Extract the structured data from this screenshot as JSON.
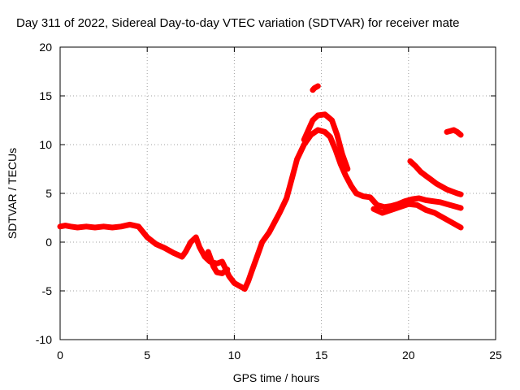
{
  "chart_data": {
    "type": "scatter",
    "title": "Day 311 of 2022, Sidereal Day-to-day VTEC variation (SDTVAR) for receiver mate",
    "xlabel": "GPS time / hours",
    "ylabel": "SDTVAR / TECUs",
    "xlim": [
      0,
      25
    ],
    "ylim": [
      -10,
      20
    ],
    "grid": true,
    "xticks": [
      0,
      5,
      10,
      15,
      20,
      25
    ],
    "yticks": [
      -10,
      -5,
      0,
      5,
      10,
      15,
      20
    ],
    "xtick_labels": [
      "0",
      "5",
      "10",
      "15",
      "20",
      "25"
    ],
    "ytick_labels": [
      "-10",
      "-5",
      "0",
      "5",
      "10",
      "15",
      "20"
    ],
    "series_color": "#ff0000",
    "series": [
      {
        "name": "main",
        "points": [
          [
            0.0,
            1.6
          ],
          [
            0.3,
            1.7
          ],
          [
            0.6,
            1.6
          ],
          [
            1.0,
            1.5
          ],
          [
            1.5,
            1.6
          ],
          [
            2.0,
            1.5
          ],
          [
            2.5,
            1.6
          ],
          [
            3.0,
            1.5
          ],
          [
            3.5,
            1.6
          ],
          [
            4.0,
            1.8
          ],
          [
            4.5,
            1.6
          ],
          [
            5.0,
            0.5
          ],
          [
            5.5,
            -0.2
          ],
          [
            6.0,
            -0.6
          ],
          [
            6.5,
            -1.1
          ],
          [
            7.0,
            -1.5
          ],
          [
            7.2,
            -1.0
          ],
          [
            7.5,
            0.0
          ],
          [
            7.8,
            0.5
          ],
          [
            8.0,
            -0.5
          ],
          [
            8.3,
            -1.5
          ],
          [
            8.6,
            -2.0
          ],
          [
            9.0,
            -2.2
          ],
          [
            9.3,
            -2.0
          ],
          [
            9.7,
            -3.5
          ],
          [
            10.0,
            -4.2
          ],
          [
            10.3,
            -4.5
          ],
          [
            10.6,
            -4.8
          ],
          [
            10.8,
            -4.0
          ],
          [
            11.0,
            -3.0
          ],
          [
            11.3,
            -1.5
          ],
          [
            11.6,
            0.0
          ],
          [
            12.0,
            1.0
          ],
          [
            12.3,
            2.0
          ],
          [
            12.6,
            3.0
          ],
          [
            13.0,
            4.5
          ],
          [
            13.3,
            6.5
          ],
          [
            13.6,
            8.5
          ],
          [
            14.0,
            10.0
          ],
          [
            14.4,
            11.0
          ],
          [
            14.8,
            11.5
          ],
          [
            15.2,
            11.3
          ],
          [
            15.5,
            10.8
          ],
          [
            15.8,
            9.5
          ],
          [
            16.1,
            8.0
          ],
          [
            16.4,
            6.8
          ],
          [
            16.7,
            5.8
          ],
          [
            17.0,
            5.0
          ],
          [
            17.4,
            4.7
          ],
          [
            17.8,
            4.6
          ],
          [
            18.2,
            3.8
          ],
          [
            18.6,
            3.6
          ],
          [
            19.0,
            3.7
          ],
          [
            19.4,
            3.9
          ],
          [
            19.8,
            4.2
          ],
          [
            20.2,
            4.4
          ],
          [
            20.6,
            4.5
          ],
          [
            21.0,
            4.3
          ],
          [
            21.4,
            4.2
          ],
          [
            21.8,
            4.1
          ],
          [
            22.2,
            3.9
          ],
          [
            22.6,
            3.7
          ],
          [
            23.0,
            3.5
          ]
        ]
      },
      {
        "name": "dip",
        "points": [
          [
            8.5,
            -1.0
          ],
          [
            8.8,
            -2.5
          ],
          [
            9.0,
            -3.1
          ],
          [
            9.3,
            -3.2
          ],
          [
            9.6,
            -2.8
          ]
        ]
      },
      {
        "name": "upper-branch",
        "points": [
          [
            14.0,
            10.5
          ],
          [
            14.5,
            12.5
          ],
          [
            14.8,
            13.0
          ],
          [
            15.2,
            13.1
          ],
          [
            15.6,
            12.5
          ],
          [
            15.9,
            11.0
          ],
          [
            16.2,
            9.0
          ],
          [
            16.5,
            7.5
          ]
        ]
      },
      {
        "name": "late-low",
        "points": [
          [
            18.0,
            3.4
          ],
          [
            18.5,
            3.0
          ],
          [
            19.0,
            3.3
          ],
          [
            19.5,
            3.6
          ],
          [
            20.0,
            3.9
          ],
          [
            20.5,
            3.8
          ],
          [
            21.0,
            3.3
          ],
          [
            21.5,
            3.0
          ],
          [
            22.0,
            2.5
          ],
          [
            22.5,
            2.0
          ],
          [
            23.0,
            1.5
          ]
        ]
      },
      {
        "name": "late-high",
        "points": [
          [
            20.1,
            8.3
          ],
          [
            20.4,
            7.8
          ],
          [
            20.7,
            7.2
          ],
          [
            21.0,
            6.8
          ],
          [
            21.3,
            6.4
          ],
          [
            21.6,
            6.0
          ],
          [
            21.9,
            5.7
          ],
          [
            22.2,
            5.4
          ],
          [
            22.5,
            5.2
          ],
          [
            22.8,
            5.0
          ],
          [
            23.0,
            4.9
          ]
        ]
      },
      {
        "name": "peak-cluster",
        "points": [
          [
            14.5,
            15.6
          ],
          [
            14.6,
            15.8
          ],
          [
            14.7,
            15.9
          ],
          [
            14.8,
            16.0
          ]
        ]
      },
      {
        "name": "late-cluster",
        "points": [
          [
            22.2,
            11.3
          ],
          [
            22.4,
            11.4
          ],
          [
            22.6,
            11.5
          ],
          [
            22.8,
            11.3
          ],
          [
            23.0,
            11.0
          ]
        ]
      }
    ]
  }
}
